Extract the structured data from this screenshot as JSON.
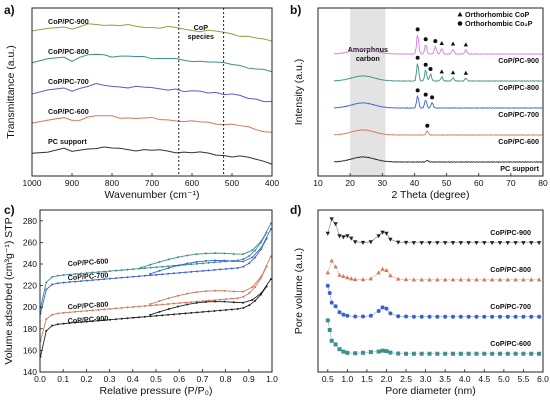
{
  "chart_data": [
    {
      "panel": "a)",
      "type": "line",
      "xlabel": "Wavenumber (cm⁻¹)",
      "ylabel": "Transmittance (a.u.)",
      "xlim": [
        1000,
        400
      ],
      "x_reversed": true,
      "xticks": [
        1000,
        900,
        800,
        700,
        600,
        500,
        400
      ],
      "yticks": [],
      "annotations": [
        {
          "text_lines": [
            "CoP",
            "species"
          ],
          "x": 578
        }
      ],
      "vlines": [
        633,
        521
      ],
      "series": [
        {
          "name": "CoP/PC-900",
          "color": "#9b9b42",
          "offset": 5,
          "x": [
            1000,
            960,
            920,
            900,
            880,
            860,
            840,
            820,
            800,
            780,
            760,
            740,
            720,
            700,
            680,
            660,
            640,
            620,
            600,
            580,
            560,
            540,
            520,
            500,
            480,
            460,
            440,
            420,
            400
          ],
          "y": [
            0.6,
            0.75,
            0.9,
            0.72,
            0.85,
            0.95,
            1.0,
            0.98,
            0.95,
            0.93,
            0.9,
            0.88,
            0.86,
            0.85,
            0.83,
            0.82,
            0.8,
            0.74,
            0.7,
            0.68,
            0.66,
            0.62,
            0.55,
            0.5,
            0.45,
            0.38,
            0.3,
            0.2,
            0.12
          ]
        },
        {
          "name": "CoP/PC-800",
          "color": "#3c8f8a",
          "offset": 4,
          "x": [
            1000,
            960,
            920,
            900,
            880,
            860,
            840,
            820,
            800,
            780,
            760,
            740,
            720,
            700,
            680,
            660,
            640,
            620,
            600,
            580,
            560,
            540,
            520,
            500,
            480,
            460,
            440,
            420,
            400
          ],
          "y": [
            0.6,
            0.72,
            0.85,
            0.7,
            0.82,
            0.92,
            0.97,
            0.95,
            0.92,
            0.9,
            0.87,
            0.85,
            0.83,
            0.82,
            0.8,
            0.78,
            0.75,
            0.62,
            0.65,
            0.66,
            0.64,
            0.6,
            0.5,
            0.48,
            0.42,
            0.35,
            0.28,
            0.18,
            0.1
          ]
        },
        {
          "name": "CoP/PC-700",
          "color": "#5a5ccc",
          "offset": 3,
          "x": [
            1000,
            960,
            920,
            900,
            880,
            860,
            840,
            820,
            800,
            780,
            760,
            740,
            720,
            700,
            680,
            660,
            640,
            620,
            600,
            580,
            560,
            540,
            520,
            500,
            480,
            460,
            440,
            420,
            400
          ],
          "y": [
            0.55,
            0.7,
            0.82,
            0.68,
            0.8,
            0.9,
            0.95,
            0.93,
            0.9,
            0.88,
            0.85,
            0.83,
            0.82,
            0.8,
            0.78,
            0.76,
            0.72,
            0.6,
            0.62,
            0.64,
            0.62,
            0.58,
            0.48,
            0.45,
            0.4,
            0.33,
            0.26,
            0.16,
            0.08
          ]
        },
        {
          "name": "CoP/PC-600",
          "color": "#d4785a",
          "offset": 2,
          "x": [
            1000,
            960,
            920,
            900,
            880,
            860,
            840,
            820,
            800,
            780,
            760,
            740,
            720,
            700,
            680,
            660,
            640,
            620,
            600,
            580,
            560,
            540,
            520,
            500,
            480,
            460,
            440,
            420,
            400
          ],
          "y": [
            0.55,
            0.68,
            0.8,
            0.66,
            0.76,
            0.86,
            0.9,
            0.88,
            0.86,
            0.84,
            0.82,
            0.8,
            0.78,
            0.76,
            0.74,
            0.72,
            0.7,
            0.62,
            0.6,
            0.6,
            0.58,
            0.55,
            0.5,
            0.45,
            0.4,
            0.33,
            0.26,
            0.16,
            0.08
          ]
        },
        {
          "name": "PC support",
          "color": "#333333",
          "offset": 1,
          "x": [
            1000,
            960,
            920,
            900,
            880,
            860,
            840,
            820,
            800,
            780,
            760,
            740,
            720,
            700,
            680,
            660,
            640,
            620,
            600,
            580,
            560,
            540,
            520,
            500,
            480,
            460,
            440,
            420,
            400
          ],
          "y": [
            0.55,
            0.62,
            0.72,
            0.62,
            0.7,
            0.78,
            0.82,
            0.8,
            0.78,
            0.76,
            0.74,
            0.72,
            0.7,
            0.68,
            0.66,
            0.64,
            0.62,
            0.6,
            0.58,
            0.55,
            0.52,
            0.48,
            0.44,
            0.4,
            0.36,
            0.3,
            0.24,
            0.14,
            0.06
          ]
        }
      ]
    },
    {
      "panel": "b)",
      "type": "line",
      "xlabel": "2 Theta (degree)",
      "ylabel": "Intensity (a.u.)",
      "xlim": [
        10,
        80
      ],
      "xticks": [
        10,
        20,
        30,
        40,
        50,
        60,
        70,
        80
      ],
      "yticks": [],
      "shaded_region": {
        "x": [
          20,
          31
        ],
        "label_lines": [
          "Amorphous",
          "carbon"
        ]
      },
      "legend": {
        "placement": "top-right",
        "entries": [
          {
            "marker": "triangle",
            "label": "Orthorhombic CoP"
          },
          {
            "marker": "circle",
            "label": "Orthorhombic Co₂P"
          }
        ]
      },
      "series": [
        {
          "name": "CoP/PC-900",
          "color": "#d77ae0",
          "offset": 5,
          "peaks": [
            [
              41,
              0.7
            ],
            [
              43.5,
              0.35
            ],
            [
              46.5,
              0.28
            ],
            [
              48.5,
              0.2
            ],
            [
              52,
              0.18
            ],
            [
              56,
              0.15
            ]
          ],
          "circle_markers": [
            41,
            43.5,
            46.5
          ],
          "triangle_markers": [
            48.5,
            52,
            56
          ]
        },
        {
          "name": "CoP/PC-800",
          "color": "#3c8f8a",
          "offset": 4,
          "peaks": [
            [
              41,
              0.65
            ],
            [
              43.5,
              0.4
            ],
            [
              45,
              0.25
            ],
            [
              48.5,
              0.15
            ],
            [
              52,
              0.12
            ],
            [
              56,
              0.1
            ]
          ],
          "circle_markers": [
            41,
            43.5,
            45
          ],
          "triangle_markers": [
            48.5,
            52,
            56
          ]
        },
        {
          "name": "CoP/PC-700",
          "color": "#3a5fd9",
          "offset": 3,
          "peaks": [
            [
              41,
              0.45
            ],
            [
              43.5,
              0.3
            ],
            [
              45.5,
              0.2
            ]
          ],
          "circle_markers": [
            41,
            43.5,
            45.5
          ],
          "triangle_markers": []
        },
        {
          "name": "CoP/PC-600",
          "color": "#d4785a",
          "offset": 2,
          "peaks": [
            [
              44,
              0.15
            ]
          ],
          "circle_markers": [
            44
          ],
          "triangle_markers": []
        },
        {
          "name": "PC support",
          "color": "#222222",
          "offset": 1,
          "peaks": [
            [
              44,
              0.06
            ]
          ],
          "circle_markers": [],
          "triangle_markers": []
        }
      ]
    },
    {
      "panel": "c)",
      "type": "line",
      "xlabel": "Relative pressure (P/P₀)",
      "ylabel": "Volume adsorbed (cm³g⁻¹) STP",
      "xlim": [
        0,
        1
      ],
      "ylim": [
        140,
        290
      ],
      "xticks": [
        0.0,
        0.1,
        0.2,
        0.3,
        0.4,
        0.5,
        0.6,
        0.7,
        0.8,
        0.9,
        1.0
      ],
      "yticks": [
        140,
        160,
        180,
        200,
        220,
        240,
        260,
        280
      ],
      "series": [
        {
          "name": "CoP/PC-600",
          "color": "#3c8f8a",
          "base": 228,
          "v0": 195,
          "end": 280,
          "hyst": 0.42
        },
        {
          "name": "CoP/PC-700",
          "color": "#3a5fd9",
          "base": 221,
          "v0": 190,
          "end": 275,
          "hyst": 0.45
        },
        {
          "name": "CoP/PC-800",
          "color": "#d4785a",
          "base": 193,
          "v0": 165,
          "end": 250,
          "hyst": 0.45
        },
        {
          "name": "CoP/PC-900",
          "color": "#222222",
          "base": 183,
          "v0": 150,
          "end": 228,
          "hyst": 0.45
        }
      ],
      "series_labels": [
        {
          "name": "CoP/PC-600",
          "x": 0.12,
          "y": 238
        },
        {
          "name": "CoP/PC-700",
          "x": 0.12,
          "y": 225
        },
        {
          "name": "CoP/PC-800",
          "x": 0.12,
          "y": 198
        },
        {
          "name": "CoP/PC-900",
          "x": 0.12,
          "y": 185
        }
      ]
    },
    {
      "panel": "d)",
      "type": "scatter",
      "xlabel": "Pore diameter (nm)",
      "ylabel": "Pore volume (a.u.)",
      "xlim": [
        0.25,
        6.0
      ],
      "xticks": [
        0.5,
        1.0,
        1.5,
        2.0,
        2.5,
        3.0,
        3.5,
        4.0,
        4.5,
        5.0,
        5.5,
        6.0
      ],
      "yticks": [],
      "series": [
        {
          "name": "CoP/PC-900",
          "color": "#222222",
          "marker": "triangle-down",
          "offset": 4,
          "x": [
            0.5,
            0.6,
            0.7,
            0.8,
            0.9,
            1.0,
            1.1,
            1.2,
            1.4,
            1.6,
            1.8,
            1.9,
            2.0,
            2.1,
            2.3,
            2.5,
            2.7,
            2.9,
            3.1,
            3.3,
            3.5,
            3.7,
            3.9,
            4.1,
            4.3,
            4.5,
            4.7,
            4.9,
            5.1,
            5.3,
            5.5,
            5.7,
            5.9
          ],
          "y": [
            0.4,
            1.0,
            0.8,
            0.3,
            0.25,
            0.3,
            0.2,
            0.05,
            0.02,
            0.05,
            0.3,
            0.45,
            0.4,
            0.15,
            0.03,
            0.02,
            0.01,
            0.01,
            0.01,
            0.01,
            0.01,
            0.01,
            0.01,
            0.01,
            0.01,
            0.01,
            0.01,
            0.01,
            0.01,
            0.01,
            0.01,
            0.01,
            0.01
          ]
        },
        {
          "name": "CoP/PC-800",
          "color": "#d4785a",
          "marker": "triangle",
          "offset": 3,
          "x": [
            0.5,
            0.6,
            0.7,
            0.8,
            0.9,
            1.0,
            1.1,
            1.2,
            1.4,
            1.6,
            1.8,
            1.9,
            2.0,
            2.1,
            2.3,
            2.5,
            2.7,
            2.9,
            3.1,
            3.3,
            3.5,
            3.7,
            3.9,
            4.1,
            4.3,
            4.5,
            4.7,
            4.9,
            5.1,
            5.3,
            5.5,
            5.7,
            5.9
          ],
          "y": [
            0.3,
            0.8,
            0.55,
            0.2,
            0.15,
            0.1,
            0.05,
            0.02,
            0.02,
            0.05,
            0.3,
            0.45,
            0.4,
            0.18,
            0.04,
            0.02,
            0.01,
            0.01,
            0.01,
            0.01,
            0.01,
            0.01,
            0.01,
            0.01,
            0.01,
            0.01,
            0.01,
            0.01,
            0.01,
            0.01,
            0.01,
            0.01,
            0.01
          ]
        },
        {
          "name": "CoP/PC-700",
          "color": "#3a5fd9",
          "marker": "circle",
          "offset": 2,
          "x": [
            0.5,
            0.55,
            0.6,
            0.7,
            0.8,
            0.9,
            1.0,
            1.2,
            1.4,
            1.6,
            1.8,
            1.9,
            2.0,
            2.1,
            2.3,
            2.5,
            2.7,
            2.9,
            3.1,
            3.3,
            3.5,
            3.7,
            3.9,
            4.1,
            4.3,
            4.5,
            4.7,
            4.9,
            5.1,
            5.3,
            5.5,
            5.7,
            5.9
          ],
          "y": [
            1.3,
            1.0,
            0.6,
            0.45,
            0.2,
            0.1,
            0.05,
            0.02,
            0.02,
            0.05,
            0.25,
            0.4,
            0.35,
            0.15,
            0.03,
            0.02,
            0.01,
            0.01,
            0.01,
            0.01,
            0.01,
            0.01,
            0.01,
            0.01,
            0.01,
            0.01,
            0.01,
            0.01,
            0.01,
            0.01,
            0.01,
            0.01,
            0.01
          ]
        },
        {
          "name": "CoP/PC-600",
          "color": "#3c8f8a",
          "marker": "square",
          "offset": 1,
          "x": [
            0.5,
            0.55,
            0.6,
            0.7,
            0.8,
            0.9,
            1.0,
            1.2,
            1.4,
            1.6,
            1.8,
            1.9,
            2.0,
            2.1,
            2.3,
            2.5,
            2.7,
            2.9,
            3.1,
            3.3,
            3.5,
            3.7,
            3.9,
            4.1,
            4.3,
            4.5,
            4.7,
            4.9,
            5.1,
            5.3,
            5.5,
            5.7,
            5.9
          ],
          "y": [
            1.4,
            1.0,
            0.55,
            0.4,
            0.2,
            0.1,
            0.05,
            0.03,
            0.05,
            0.08,
            0.1,
            0.14,
            0.12,
            0.06,
            0.02,
            0.01,
            0.01,
            0.01,
            0.01,
            0.01,
            0.01,
            0.01,
            0.01,
            0.01,
            0.01,
            0.01,
            0.01,
            0.01,
            0.01,
            0.01,
            0.01,
            0.01,
            0.01
          ]
        }
      ]
    }
  ]
}
